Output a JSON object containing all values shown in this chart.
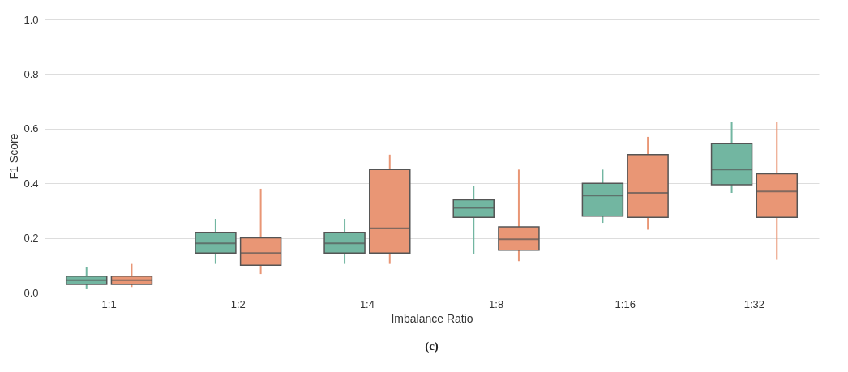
{
  "chart_data": {
    "type": "box",
    "xlabel": "Imbalance Ratio",
    "ylabel": "F1 Score",
    "annotations": [
      "(c)"
    ],
    "categories": [
      "1:1",
      "1:2",
      "1:4",
      "1:8",
      "1:16",
      "1:32"
    ],
    "ylim": [
      0,
      1
    ],
    "yticks": [
      {
        "value": 0,
        "label": "0.0"
      },
      {
        "value": 0.2,
        "label": "0.2"
      },
      {
        "value": 0.4,
        "label": "0.4"
      },
      {
        "value": 0.6,
        "label": "0.6"
      },
      {
        "value": 0.8,
        "label": "0.8"
      },
      {
        "value": 1,
        "label": "1.0"
      }
    ],
    "grid": "y",
    "series": [
      {
        "color": "#72b6a1",
        "boxes": [
          {
            "low": 0.015,
            "q1": 0.03,
            "median": 0.045,
            "q3": 0.06,
            "high": 0.095
          },
          {
            "low": 0.105,
            "q1": 0.145,
            "median": 0.18,
            "q3": 0.22,
            "high": 0.27
          },
          {
            "low": 0.105,
            "q1": 0.145,
            "median": 0.18,
            "q3": 0.22,
            "high": 0.27
          },
          {
            "low": 0.14,
            "q1": 0.275,
            "median": 0.31,
            "q3": 0.34,
            "high": 0.39
          },
          {
            "low": 0.255,
            "q1": 0.28,
            "median": 0.355,
            "q3": 0.4,
            "high": 0.45
          },
          {
            "low": 0.365,
            "q1": 0.395,
            "median": 0.45,
            "q3": 0.545,
            "high": 0.625
          }
        ]
      },
      {
        "color": "#e99675",
        "boxes": [
          {
            "low": 0.02,
            "q1": 0.03,
            "median": 0.045,
            "q3": 0.06,
            "high": 0.105
          },
          {
            "low": 0.068,
            "q1": 0.1,
            "median": 0.145,
            "q3": 0.2,
            "high": 0.38
          },
          {
            "low": 0.105,
            "q1": 0.145,
            "median": 0.235,
            "q3": 0.45,
            "high": 0.505
          },
          {
            "low": 0.115,
            "q1": 0.155,
            "median": 0.195,
            "q3": 0.24,
            "high": 0.45
          },
          {
            "low": 0.23,
            "q1": 0.275,
            "median": 0.365,
            "q3": 0.505,
            "high": 0.57
          },
          {
            "low": 0.12,
            "q1": 0.275,
            "median": 0.37,
            "q3": 0.435,
            "high": 0.625
          }
        ]
      }
    ]
  }
}
